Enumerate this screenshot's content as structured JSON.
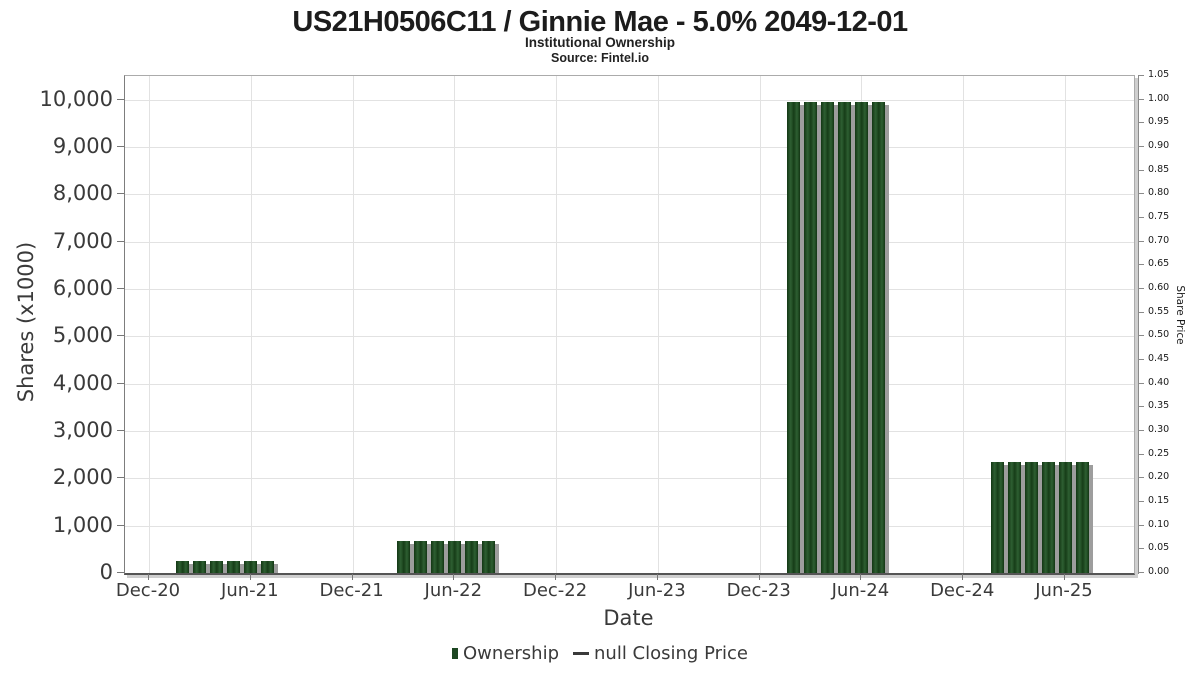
{
  "header": {
    "title": "US21H0506C11 / Ginnie Mae - 5.0% 2049-12-01",
    "subtitle": "Institutional Ownership",
    "source": "Source: Fintel.io"
  },
  "legend": {
    "items": [
      {
        "label": "Ownership",
        "marker": "green-square",
        "color": "#1d4722"
      },
      {
        "label": "null Closing Price",
        "marker": "dash",
        "color": "#3a3a3a"
      }
    ]
  },
  "colors": {
    "bar": "#1d4722",
    "bar_shadow": "#9d9d9d",
    "grid": "#e2e2e2",
    "axis_line": "#555555",
    "text": "#3a3a3a"
  },
  "chart_data": {
    "type": "bar",
    "title": "US21H0506C11 / Ginnie Mae - 5.0% 2049-12-01",
    "subtitle": "Institutional Ownership",
    "source": "Source: Fintel.io",
    "xlabel": "Date",
    "ylabel": "Shares (x1000)",
    "y2label": "Share Price",
    "grid": true,
    "legend_position": "bottom",
    "ylim": [
      0,
      10500
    ],
    "y2lim": [
      0,
      1.05
    ],
    "x_ticks": [
      {
        "label": "Dec-20",
        "month": 0
      },
      {
        "label": "Jun-21",
        "month": 6
      },
      {
        "label": "Dec-21",
        "month": 12
      },
      {
        "label": "Jun-22",
        "month": 18
      },
      {
        "label": "Dec-22",
        "month": 24
      },
      {
        "label": "Jun-23",
        "month": 30
      },
      {
        "label": "Dec-23",
        "month": 36
      },
      {
        "label": "Jun-24",
        "month": 42
      },
      {
        "label": "Dec-24",
        "month": 48
      },
      {
        "label": "Jun-25",
        "month": 54
      }
    ],
    "y_ticks": [
      {
        "label": "0",
        "value": 0
      },
      {
        "label": "1,000",
        "value": 1000
      },
      {
        "label": "2,000",
        "value": 2000
      },
      {
        "label": "3,000",
        "value": 3000
      },
      {
        "label": "4,000",
        "value": 4000
      },
      {
        "label": "5,000",
        "value": 5000
      },
      {
        "label": "6,000",
        "value": 6000
      },
      {
        "label": "7,000",
        "value": 7000
      },
      {
        "label": "8,000",
        "value": 8000
      },
      {
        "label": "9,000",
        "value": 9000
      },
      {
        "label": "10,000",
        "value": 10000
      }
    ],
    "y2_ticks": [
      {
        "label": "0.00",
        "value": 0.0
      },
      {
        "label": "0.05",
        "value": 0.05
      },
      {
        "label": "0.10",
        "value": 0.1
      },
      {
        "label": "0.15",
        "value": 0.15
      },
      {
        "label": "0.20",
        "value": 0.2
      },
      {
        "label": "0.25",
        "value": 0.25
      },
      {
        "label": "0.30",
        "value": 0.3
      },
      {
        "label": "0.35",
        "value": 0.35
      },
      {
        "label": "0.40",
        "value": 0.4
      },
      {
        "label": "0.45",
        "value": 0.45
      },
      {
        "label": "0.50",
        "value": 0.5
      },
      {
        "label": "0.55",
        "value": 0.55
      },
      {
        "label": "0.60",
        "value": 0.6
      },
      {
        "label": "0.65",
        "value": 0.65
      },
      {
        "label": "0.70",
        "value": 0.7
      },
      {
        "label": "0.75",
        "value": 0.75
      },
      {
        "label": "0.80",
        "value": 0.8
      },
      {
        "label": "0.85",
        "value": 0.85
      },
      {
        "label": "0.90",
        "value": 0.9
      },
      {
        "label": "0.95",
        "value": 0.95
      },
      {
        "label": "1.00",
        "value": 1.0
      },
      {
        "label": "1.05",
        "value": 1.05
      }
    ],
    "series": [
      {
        "name": "Ownership",
        "color": "#1d4722",
        "points": [
          {
            "month": "Feb-21",
            "month_index": 2,
            "value": 260
          },
          {
            "month": "Mar-21",
            "month_index": 3,
            "value": 260
          },
          {
            "month": "Apr-21",
            "month_index": 4,
            "value": 260
          },
          {
            "month": "May-21",
            "month_index": 5,
            "value": 260
          },
          {
            "month": "Jun-21",
            "month_index": 6,
            "value": 260
          },
          {
            "month": "Jul-21",
            "month_index": 7,
            "value": 260
          },
          {
            "month": "Mar-22",
            "month_index": 15,
            "value": 670
          },
          {
            "month": "Apr-22",
            "month_index": 16,
            "value": 670
          },
          {
            "month": "May-22",
            "month_index": 17,
            "value": 670
          },
          {
            "month": "Jun-22",
            "month_index": 18,
            "value": 670
          },
          {
            "month": "Jul-22",
            "month_index": 19,
            "value": 670
          },
          {
            "month": "Aug-22",
            "month_index": 20,
            "value": 670
          },
          {
            "month": "Feb-24",
            "month_index": 38,
            "value": 9950
          },
          {
            "month": "Mar-24",
            "month_index": 39,
            "value": 9950
          },
          {
            "month": "Apr-24",
            "month_index": 40,
            "value": 9950
          },
          {
            "month": "May-24",
            "month_index": 41,
            "value": 9950
          },
          {
            "month": "Jun-24",
            "month_index": 42,
            "value": 9950
          },
          {
            "month": "Jul-24",
            "month_index": 43,
            "value": 9950
          },
          {
            "month": "Feb-25",
            "month_index": 50,
            "value": 2350
          },
          {
            "month": "Mar-25",
            "month_index": 51,
            "value": 2350
          },
          {
            "month": "Apr-25",
            "month_index": 52,
            "value": 2350
          },
          {
            "month": "May-25",
            "month_index": 53,
            "value": 2350
          },
          {
            "month": "Jun-25",
            "month_index": 54,
            "value": 2350
          },
          {
            "month": "Jul-25",
            "month_index": 55,
            "value": 2350
          }
        ]
      },
      {
        "name": "null Closing Price",
        "type": "line",
        "points": []
      }
    ]
  }
}
